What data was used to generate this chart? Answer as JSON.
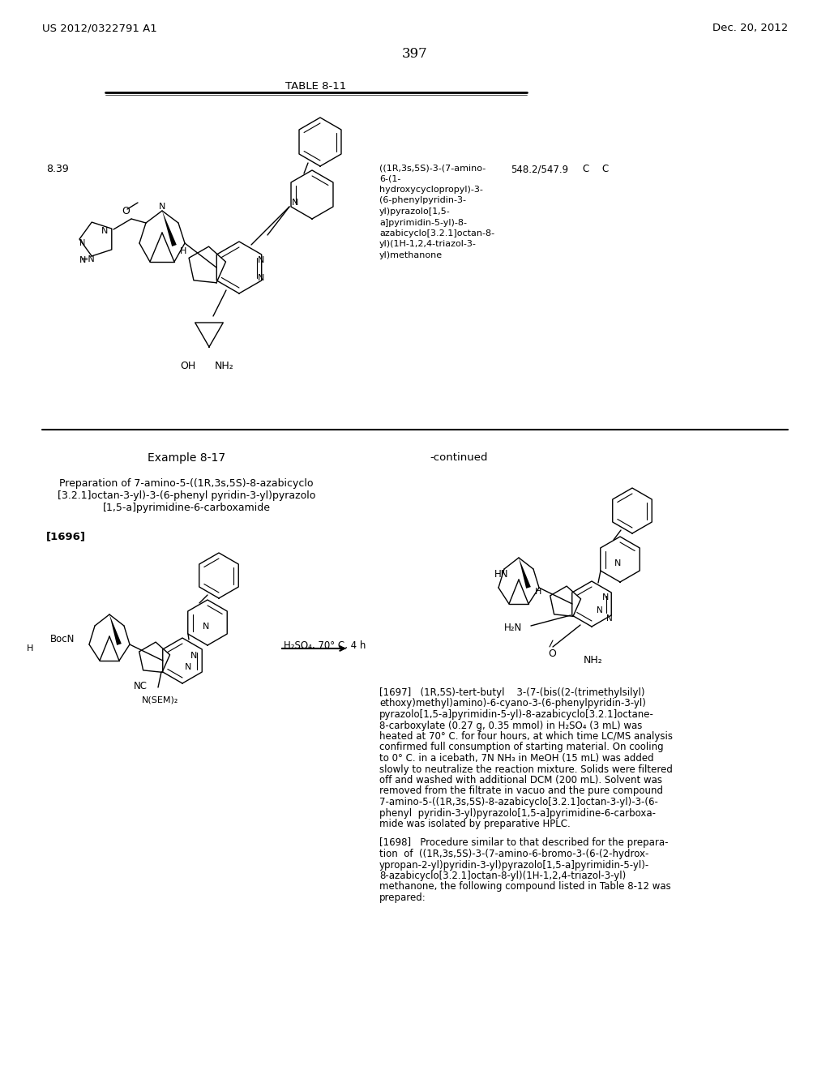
{
  "bg": "#ffffff",
  "header_left": "US 2012/0322791 A1",
  "header_right": "Dec. 20, 2012",
  "page_num": "397",
  "table_title": "TABLE 8-11",
  "entry_num": "8.39",
  "ms_val": "548.2/547.9",
  "chiral1": "C",
  "chiral2": "C",
  "cmpd_name_lines": [
    "((1R,3s,5S)-3-(7-amino-",
    "6-(1-",
    "hydroxycyclopropyl)-3-",
    "(6-phenylpyridin-3-",
    "yl)pyrazolo[1,5-",
    "a]pyrimidin-5-yl)-8-",
    "azabicyclo[3.2.1]octan-8-",
    "yl)(1H-1,2,4-triazol-3-",
    "yl)methanone"
  ],
  "ex_title": "Example 8-17",
  "continued": "-continued",
  "prep_lines": [
    "Preparation of 7-amino-5-((1R,3s,5S)-8-azabicyclo",
    "[3.2.1]octan-3-yl)-3-(6-phenyl pyridin-3-yl)pyrazolo",
    "[1,5-a]pyrimidine-6-carboxamide"
  ],
  "ref1696": "[1696]",
  "rxn_label": "H₂SO₄, 70° C, 4 h",
  "p1697_lines": [
    "[1697]   (1R,5S)-tert-butyl    3-(7-(bis((2-(trimethylsilyl)",
    "ethoxy)methyl)amino)-6-cyano-3-(6-phenylpyridin-3-yl)",
    "pyrazolo[1,5-a]pyrimidin-5-yl)-8-azabicyclo[3.2.1]octane-",
    "8-carboxylate (0.27 g, 0.35 mmol) in H₂SO₄ (3 mL) was",
    "heated at 70° C. for four hours, at which time LC/MS analysis",
    "confirmed full consumption of starting material. On cooling",
    "to 0° C. in a icebath, 7N NH₃ in MeOH (15 mL) was added",
    "slowly to neutralize the reaction mixture. Solids were filtered",
    "off and washed with additional DCM (200 mL). Solvent was",
    "removed from the filtrate in vacuo and the pure compound",
    "7-amino-5-((1R,3s,5S)-8-azabicyclo[3.2.1]octan-3-yl)-3-(6-",
    "phenyl  pyridin-3-yl)pyrazolo[1,5-a]pyrimidine-6-carboxa-",
    "mide was isolated by preparative HPLC."
  ],
  "p1698_lines": [
    "[1698]   Procedure similar to that described for the prepara-",
    "tion  of  ((1R,3s,5S)-3-(7-amino-6-bromo-3-(6-(2-hydrox-",
    "ypropan-2-yl)pyridin-3-yl)pyrazolo[1,5-a]pyrimidin-5-yl)-",
    "8-azabicyclo[3.2.1]octan-8-yl)(1H-1,2,4-triazol-3-yl)",
    "methanone, the following compound listed in Table 8-12 was",
    "prepared:"
  ]
}
